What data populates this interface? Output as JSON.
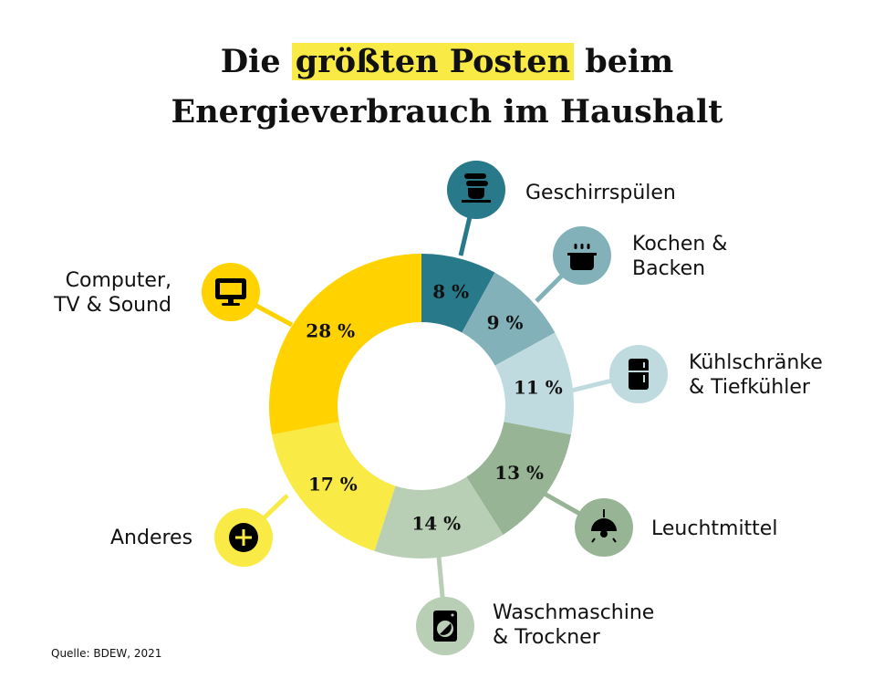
{
  "title": {
    "line1_pre": "Die ",
    "line1_highlight": "größten Posten",
    "line1_post": " beim",
    "line2": "Energieverbrauch im Haushalt"
  },
  "source": "Quelle: BDEW, 2021",
  "chart_data": {
    "type": "pie",
    "donut": true,
    "title": "Die größten Posten beim Energieverbrauch im Haushalt",
    "unit": "%",
    "categories": [
      "Geschirrspülen",
      "Kochen & Backen",
      "Kühlschränke & Tiefkühler",
      "Leuchtmittel",
      "Waschmaschine & Trockner",
      "Anderes",
      "Computer, TV & Sound"
    ],
    "values": [
      8,
      9,
      11,
      13,
      14,
      17,
      28
    ],
    "data_labels": [
      "8 %",
      "9 %",
      "11 %",
      "13 %",
      "14 %",
      "17 %",
      "28 %"
    ],
    "colors": [
      "#28798a",
      "#82b1b9",
      "#c0dbe0",
      "#97b595",
      "#b8cfb6",
      "#f9ea45",
      "#ffd200"
    ],
    "icons": [
      "dishes-icon",
      "pot-icon",
      "fridge-icon",
      "lamp-icon",
      "washing-machine-icon",
      "plus-icon",
      "monitor-icon"
    ],
    "legend": "callouts around chart"
  }
}
